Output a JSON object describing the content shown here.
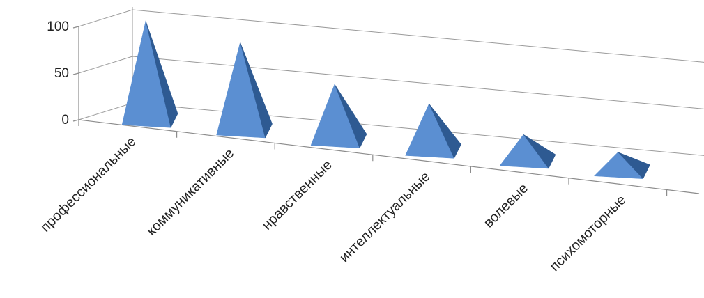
{
  "chart_data": {
    "type": "bar",
    "shape": "pyramid-3d",
    "categories": [
      "профессиональные",
      "коммуникативные",
      "нравственные",
      "интеллектуальные",
      "волевые",
      "психомоторные"
    ],
    "values": [
      104,
      92,
      58,
      48,
      26,
      18
    ],
    "yticks": [
      0,
      50,
      100
    ],
    "ylim": [
      0,
      100
    ],
    "grid": true,
    "legend": "none",
    "colors": {
      "face_light": "#5b8fd2",
      "face_dark": "#2e5a92",
      "face_mid": "#4a7fc4",
      "edge": "#1f4a80"
    }
  }
}
